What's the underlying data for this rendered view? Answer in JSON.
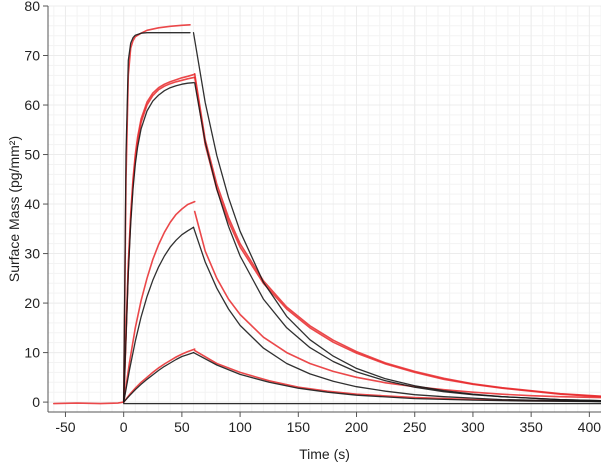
{
  "chart_data": {
    "type": "line",
    "title": "",
    "xlabel": "Time (s)",
    "ylabel": "Surface Mass (pg/mm²)",
    "xlim": [
      -65,
      410
    ],
    "ylim": [
      -2,
      80
    ],
    "xticks": [
      -50,
      0,
      50,
      100,
      150,
      200,
      250,
      300,
      350,
      400
    ],
    "yticks": [
      0,
      10,
      20,
      30,
      40,
      50,
      60,
      70,
      80
    ],
    "xtick_labels": [
      "-50",
      "0",
      "50",
      "100",
      "150",
      "200",
      "250",
      "300",
      "350",
      "400"
    ],
    "ytick_labels": [
      "0",
      "10",
      "20",
      "30",
      "40",
      "50",
      "60",
      "70",
      "80"
    ],
    "grid": true,
    "legend": "none",
    "injection_end_s": 57,
    "colors": {
      "measured": "#e8282a",
      "fit": "#1a1a1a",
      "grid": "#ececec"
    },
    "series": [
      {
        "kind": "measured",
        "x": [
          -60,
          -40,
          -20,
          -5,
          0,
          2,
          4,
          6,
          8,
          10,
          15,
          20,
          30,
          40,
          50,
          57
        ],
        "y": [
          -0.3,
          -0.2,
          -0.3,
          -0.2,
          0,
          45,
          66,
          71.5,
          73,
          73.8,
          74.5,
          75.1,
          75.6,
          75.9,
          76.1,
          76.2
        ]
      },
      {
        "kind": "fit",
        "x": [
          0,
          2,
          4,
          6,
          8,
          10,
          15,
          20,
          30,
          40,
          50,
          57
        ],
        "y": [
          0,
          50,
          69,
          72.5,
          73.6,
          74.1,
          74.5,
          74.6,
          74.6,
          74.6,
          74.6,
          74.6
        ]
      },
      {
        "kind": "measured",
        "x": [
          0,
          2,
          4,
          6,
          8,
          10,
          12,
          15,
          20,
          25,
          30,
          35,
          40,
          45,
          50,
          55,
          61
        ],
        "y": [
          0,
          14,
          28,
          38,
          45,
          50,
          53.5,
          57.2,
          60.6,
          62.4,
          63.5,
          64.2,
          64.7,
          65.1,
          65.5,
          65.8,
          66.2
        ]
      },
      {
        "kind": "measured",
        "x": [
          0,
          2,
          4,
          6,
          8,
          10,
          12,
          15,
          20,
          25,
          30,
          35,
          40,
          45,
          50,
          55,
          61
        ],
        "y": [
          0,
          13,
          27,
          37,
          44,
          49,
          52.5,
          56.5,
          60,
          61.9,
          63.1,
          63.8,
          64.3,
          64.7,
          65,
          65.3,
          65.6
        ]
      },
      {
        "kind": "fit",
        "x": [
          0,
          2,
          4,
          6,
          8,
          10,
          12,
          15,
          20,
          25,
          30,
          35,
          40,
          45,
          50,
          55,
          60
        ],
        "y": [
          0,
          13,
          26,
          36,
          43,
          48,
          51.5,
          55.2,
          58.8,
          60.8,
          62,
          62.9,
          63.5,
          63.9,
          64.2,
          64.4,
          64.5
        ]
      },
      {
        "kind": "measured",
        "x": [
          0,
          5,
          10,
          15,
          20,
          25,
          30,
          35,
          40,
          45,
          50,
          55,
          61
        ],
        "y": [
          0,
          8,
          15,
          20.5,
          25,
          28.8,
          31.8,
          34.3,
          36.3,
          37.9,
          39,
          39.9,
          40.5
        ]
      },
      {
        "kind": "fit",
        "x": [
          0,
          5,
          10,
          15,
          20,
          25,
          30,
          35,
          40,
          45,
          50,
          55,
          60
        ],
        "y": [
          0,
          6.5,
          12.3,
          17.2,
          21.3,
          24.6,
          27.3,
          29.5,
          31.3,
          32.7,
          33.8,
          34.6,
          35.3
        ]
      },
      {
        "kind": "measured",
        "x": [
          0,
          5,
          10,
          15,
          20,
          25,
          30,
          35,
          40,
          45,
          50,
          55,
          61
        ],
        "y": [
          0,
          1.5,
          2.8,
          4,
          5,
          6,
          6.9,
          7.7,
          8.4,
          9.1,
          9.7,
          10.2,
          10.7
        ]
      },
      {
        "kind": "fit",
        "x": [
          0,
          5,
          10,
          15,
          20,
          25,
          30,
          35,
          40,
          45,
          50,
          55,
          60
        ],
        "y": [
          0,
          1.3,
          2.5,
          3.6,
          4.6,
          5.5,
          6.4,
          7.2,
          7.9,
          8.6,
          9.2,
          9.6,
          10
        ]
      },
      {
        "kind": "measured",
        "x": [
          61,
          70,
          80,
          90,
          100,
          120,
          140,
          160,
          180,
          200,
          225,
          250,
          275,
          300,
          325,
          350,
          375,
          410
        ],
        "y": [
          66.3,
          53,
          44,
          37.3,
          32,
          24.5,
          19.2,
          15.4,
          12.5,
          10.2,
          7.9,
          6.2,
          4.8,
          3.7,
          2.9,
          2.3,
          1.7,
          1.2
        ]
      },
      {
        "kind": "measured",
        "x": [
          61,
          70,
          80,
          90,
          100,
          120,
          140,
          160,
          180,
          200,
          225,
          250,
          275,
          300,
          325,
          350,
          375,
          410
        ],
        "y": [
          65.6,
          52,
          43,
          36.5,
          31.3,
          24,
          18.8,
          15,
          12.1,
          9.9,
          7.7,
          6,
          4.6,
          3.6,
          2.8,
          2.2,
          1.6,
          1.1
        ]
      },
      {
        "kind": "fit",
        "x": [
          60,
          70,
          80,
          90,
          100,
          120,
          140,
          160,
          180,
          200,
          225,
          250,
          275,
          300,
          325,
          350,
          375,
          410
        ],
        "y": [
          74.6,
          60.5,
          49.8,
          41.3,
          34.5,
          24.2,
          17.3,
          12.6,
          9.3,
          6.8,
          4.7,
          3.3,
          2.3,
          1.6,
          1.1,
          0.8,
          0.5,
          0.3
        ]
      },
      {
        "kind": "fit",
        "x": [
          61,
          70,
          80,
          90,
          100,
          120,
          140,
          160,
          180,
          200,
          225,
          250,
          275,
          300,
          325,
          350,
          375,
          410
        ],
        "y": [
          64.5,
          52.5,
          43,
          35.5,
          29.5,
          20.8,
          15,
          11,
          8.2,
          6.1,
          4.3,
          3,
          2.1,
          1.5,
          1.1,
          0.8,
          0.5,
          0.3
        ]
      },
      {
        "kind": "measured",
        "x": [
          61,
          70,
          80,
          90,
          100,
          120,
          140,
          160,
          180,
          200,
          225,
          250,
          275,
          300,
          325,
          350,
          375,
          410
        ],
        "y": [
          38.5,
          30.5,
          25,
          20.8,
          17.7,
          13.1,
          10,
          7.8,
          6.2,
          5,
          3.9,
          3.1,
          2.5,
          2,
          1.6,
          1.3,
          1.1,
          0.9
        ]
      },
      {
        "kind": "fit",
        "x": [
          60,
          70,
          80,
          90,
          100,
          120,
          140,
          160,
          180,
          200,
          225,
          250,
          275,
          300,
          325,
          350,
          375,
          410
        ],
        "y": [
          35.3,
          28.3,
          23,
          18.8,
          15.5,
          10.9,
          7.8,
          5.7,
          4.2,
          3.1,
          2.2,
          1.5,
          1.1,
          0.8,
          0.5,
          0.4,
          0.3,
          0.1
        ]
      },
      {
        "kind": "measured",
        "x": [
          61,
          80,
          100,
          125,
          150,
          175,
          200,
          250,
          300,
          350,
          410
        ],
        "y": [
          10.4,
          7.8,
          6,
          4.3,
          3,
          2.2,
          1.6,
          0.9,
          0.5,
          0.3,
          0.2
        ]
      },
      {
        "kind": "fit",
        "x": [
          60,
          80,
          100,
          125,
          150,
          175,
          200,
          250,
          300,
          350,
          410
        ],
        "y": [
          10,
          7.5,
          5.6,
          4,
          2.8,
          2,
          1.4,
          0.7,
          0.4,
          0.2,
          0.1
        ]
      },
      {
        "kind": "fit",
        "x": [
          0,
          100,
          200,
          300,
          410
        ],
        "y": [
          -0.3,
          -0.3,
          -0.3,
          -0.3,
          -0.3
        ]
      }
    ]
  }
}
